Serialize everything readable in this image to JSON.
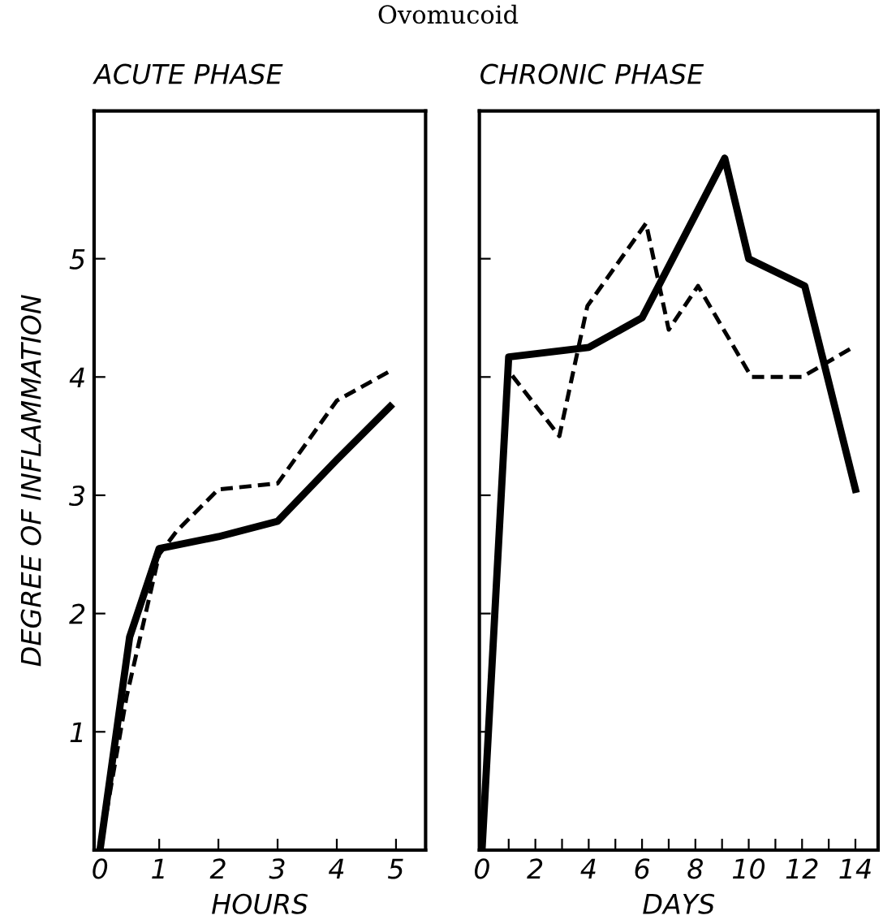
{
  "chart_data": [
    {
      "type": "line",
      "title": "ACUTE PHASE",
      "xlabel": "HOURS",
      "ylabel": "DEGREE OF INFLAMMATION",
      "annotations": [
        "Ovomucoid"
      ],
      "xlim": [
        -0.1,
        5.5
      ],
      "ylim": [
        0,
        6.25
      ],
      "xticks": [
        0,
        1,
        2,
        3,
        4,
        5
      ],
      "yticks": [
        1,
        2,
        3,
        4,
        5
      ],
      "grid": false,
      "legend": false,
      "marker": "none",
      "series": [
        {
          "color": "#000000",
          "line_style": "solid",
          "x": [
            0,
            0.5,
            1,
            2,
            3,
            4,
            4.9
          ],
          "values": [
            0,
            1.8,
            2.55,
            2.65,
            2.78,
            3.3,
            3.75
          ]
        },
        {
          "color": "#000000",
          "line_style": "dashed",
          "x": [
            0,
            0.45,
            1,
            1.3,
            2,
            3,
            4,
            4.9
          ],
          "values": [
            0,
            1.3,
            2.5,
            2.7,
            3.05,
            3.1,
            3.8,
            4.05
          ]
        }
      ]
    },
    {
      "type": "line",
      "title": "CHRONIC PHASE",
      "xlabel": "DAYS",
      "tick_labels": "x",
      "xlim": [
        -0.1,
        14.85
      ],
      "ylim": [
        0,
        6.25
      ],
      "xticks": [
        0,
        {
          "value": 1,
          "label": null
        },
        2,
        {
          "value": 3,
          "label": null
        },
        4,
        {
          "value": 5,
          "label": null
        },
        6,
        {
          "value": 7,
          "label": null
        },
        8,
        {
          "value": 9,
          "label": null
        },
        10,
        {
          "value": 11,
          "label": null
        },
        12,
        {
          "value": 13,
          "label": null
        },
        14
      ],
      "yticks": [
        {
          "value": 1,
          "label": null
        },
        {
          "value": 2,
          "label": null
        },
        {
          "value": 3,
          "label": null
        },
        {
          "value": 4,
          "label": null
        },
        {
          "value": 5,
          "label": null
        }
      ],
      "grid": false,
      "legend": false,
      "marker": "none",
      "series": [
        {
          "color": "#000000",
          "line_style": "solid",
          "x": [
            0,
            1,
            4,
            6,
            9.1,
            10,
            12.1,
            14
          ],
          "values": [
            0,
            4.17,
            4.25,
            4.5,
            5.85,
            5.0,
            4.77,
            3.05
          ]
        },
        {
          "color": "#000000",
          "line_style": "dashed",
          "x": [
            0,
            1,
            2.9,
            3.95,
            6.15,
            7,
            8.1,
            10.1,
            12,
            13.9
          ],
          "values": [
            0,
            4.05,
            3.5,
            4.6,
            5.3,
            4.4,
            4.77,
            4.0,
            4.0,
            4.25
          ]
        }
      ]
    }
  ]
}
